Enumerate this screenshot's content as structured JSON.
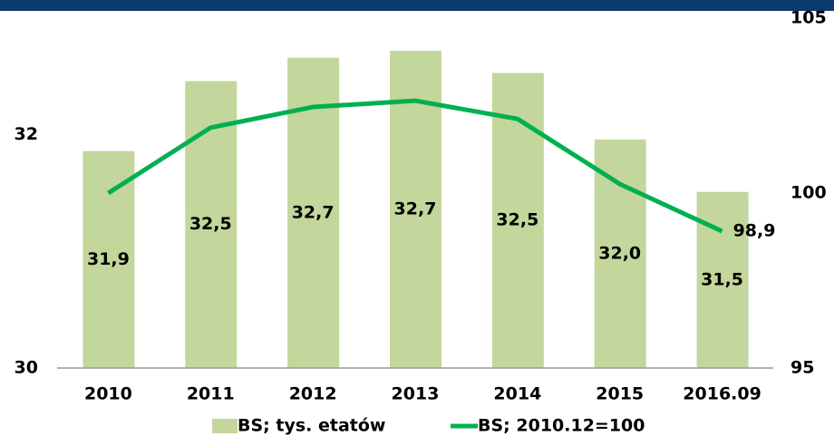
{
  "chart_data": {
    "type": "bar-line",
    "categories": [
      "2010",
      "2011",
      "2012",
      "2013",
      "2014",
      "2015",
      "2016.09"
    ],
    "series": [
      {
        "name": "BS; tys. etatów",
        "color": "#c3d69b",
        "type": "bar",
        "values": [
          31.86,
          32.46,
          32.66,
          32.72,
          32.53,
          31.96,
          31.51
        ],
        "value_labels": [
          "31,9",
          "32,5",
          "32,7",
          "32,7",
          "32,5",
          "32,0",
          "31,5"
        ]
      },
      {
        "name": "BS; 2010.12=100",
        "color": "#00b050",
        "type": "line",
        "axis": "y2",
        "values": [
          100,
          101.87,
          102.46,
          102.64,
          102.12,
          100.26,
          98.91
        ],
        "value_labels": [
          null,
          null,
          null,
          null,
          null,
          null,
          "98,9"
        ]
      }
    ],
    "ylim": [
      30,
      33
    ],
    "yticks": [
      30,
      32
    ],
    "y2lim": [
      95,
      105
    ],
    "y2ticks": [
      95,
      100,
      105
    ]
  }
}
